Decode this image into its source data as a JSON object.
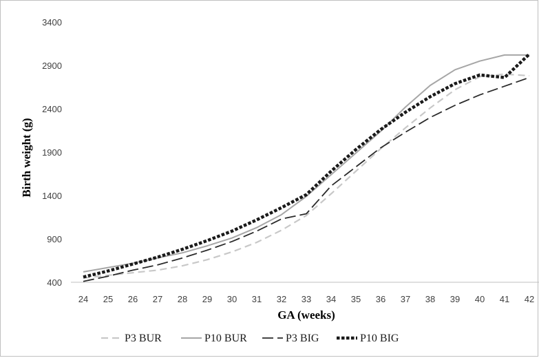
{
  "chart_data": {
    "type": "line",
    "title": "",
    "xlabel": "GA (weeks)",
    "ylabel": "Birth weight (g)",
    "x": [
      24,
      25,
      26,
      27,
      28,
      29,
      30,
      31,
      32,
      33,
      34,
      35,
      36,
      37,
      38,
      39,
      40,
      41,
      42
    ],
    "ylim": [
      400,
      3400
    ],
    "yticks": [
      400,
      900,
      1400,
      1900,
      2400,
      2900,
      3400
    ],
    "grid": false,
    "legend_position": "bottom",
    "series": [
      {
        "name": "P3 BUR",
        "color": "#c8c8c8",
        "dash": "dashed",
        "values": [
          450,
          480,
          510,
          540,
          590,
          660,
          750,
          860,
          1000,
          1170,
          1420,
          1680,
          1940,
          2180,
          2410,
          2620,
          2770,
          2800,
          2780
        ]
      },
      {
        "name": "P10 BUR",
        "color": "#a6a6a6",
        "dash": "solid",
        "values": [
          520,
          570,
          620,
          680,
          740,
          820,
          910,
          1030,
          1180,
          1390,
          1640,
          1890,
          2140,
          2420,
          2670,
          2850,
          2950,
          3020,
          3020
        ]
      },
      {
        "name": "P3 BIG",
        "color": "#2a2a2a",
        "dash": "longdash",
        "values": [
          410,
          470,
          540,
          600,
          680,
          770,
          870,
          990,
          1130,
          1190,
          1510,
          1730,
          1950,
          2130,
          2300,
          2440,
          2560,
          2660,
          2760
        ]
      },
      {
        "name": "P10 BIG",
        "color": "#1a1a1a",
        "dash": "dotted",
        "values": [
          460,
          530,
          610,
          690,
          780,
          880,
          990,
          1120,
          1260,
          1410,
          1680,
          1930,
          2160,
          2360,
          2540,
          2690,
          2790,
          2760,
          3030
        ]
      }
    ]
  }
}
